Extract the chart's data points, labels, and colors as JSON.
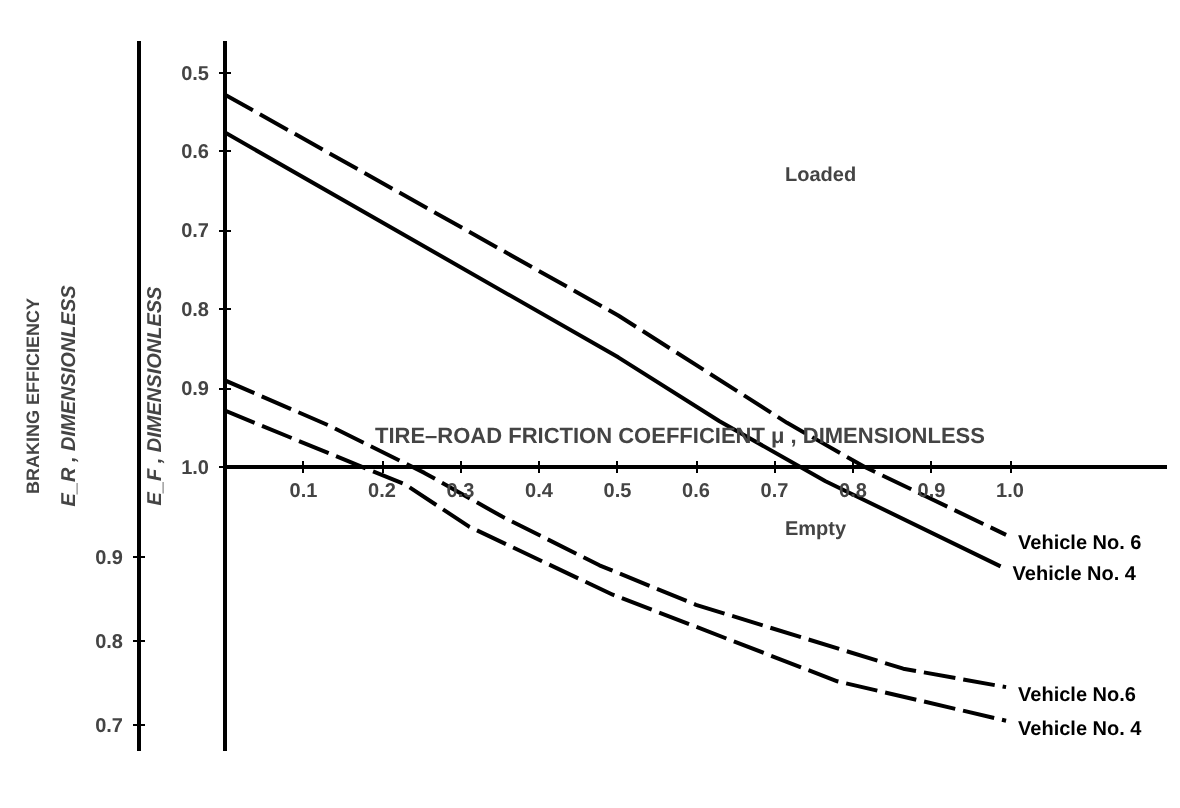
{
  "chart_data": {
    "type": "line",
    "xlabel": "TIRE–ROAD FRICTION COEFFICIENT  μ , DIMENSIONLESS",
    "ylabel": "E_F , DIMENSIONLESS",
    "y2label": "E_R , DIMENSIONLESS",
    "annotations": [
      "Loaded",
      "Empty",
      "BRAKING EFFICIENCY"
    ],
    "xlim": [
      0,
      1.2
    ],
    "xticks": [
      0.1,
      0.2,
      0.3,
      0.4,
      0.5,
      0.6,
      0.7,
      0.8,
      0.9,
      {
        "value": 1.0,
        "label": "1.0"
      }
    ],
    "ylim": [
      1.36,
      0.46
    ],
    "yticks": [
      0.5,
      0.6,
      0.7,
      0.8,
      0.9,
      {
        "value": 1.0,
        "label": "1.0"
      }
    ],
    "y2lim": [
      0.669,
      1.514
    ],
    "y2ticks": [
      0.7,
      0.8,
      0.9
    ],
    "grid": false,
    "marker": "none",
    "series": [
      {
        "name": "Vehicle No. 6",
        "color": "#000000",
        "line_style": "dashed",
        "x": [
          0,
          0.501,
          0.716,
          0.815,
          0.995
        ],
        "values": [
          0.528,
          0.808,
          0.944,
          1.0,
          1.086
        ]
      },
      {
        "name": "Vehicle No. 4",
        "color": "#000000",
        "line_style": "solid",
        "x": [
          0,
          0.501,
          0.63,
          0.765,
          0.988
        ],
        "values": [
          0.576,
          0.861,
          0.942,
          1.018,
          1.126
        ]
      },
      {
        "name": "Vehicle No.6",
        "color": "#000000",
        "line_style": "dashed",
        "axis": "y2",
        "x": [
          0,
          0.131,
          0.254,
          0.353,
          0.477,
          0.6,
          0.864,
          0.995
        ],
        "values": [
          1.11,
          1.057,
          1.0,
          0.948,
          0.89,
          0.843,
          0.767,
          0.745
        ]
      },
      {
        "name": "Vehicle No. 4",
        "color": "#000000",
        "line_style": "dashed",
        "axis": "y2",
        "x": [
          0,
          0.081,
          0.23,
          0.311,
          0.494,
          0.78,
          0.995
        ],
        "values": [
          1.074,
          1.043,
          0.986,
          0.936,
          0.855,
          0.752,
          0.705
        ]
      }
    ]
  }
}
